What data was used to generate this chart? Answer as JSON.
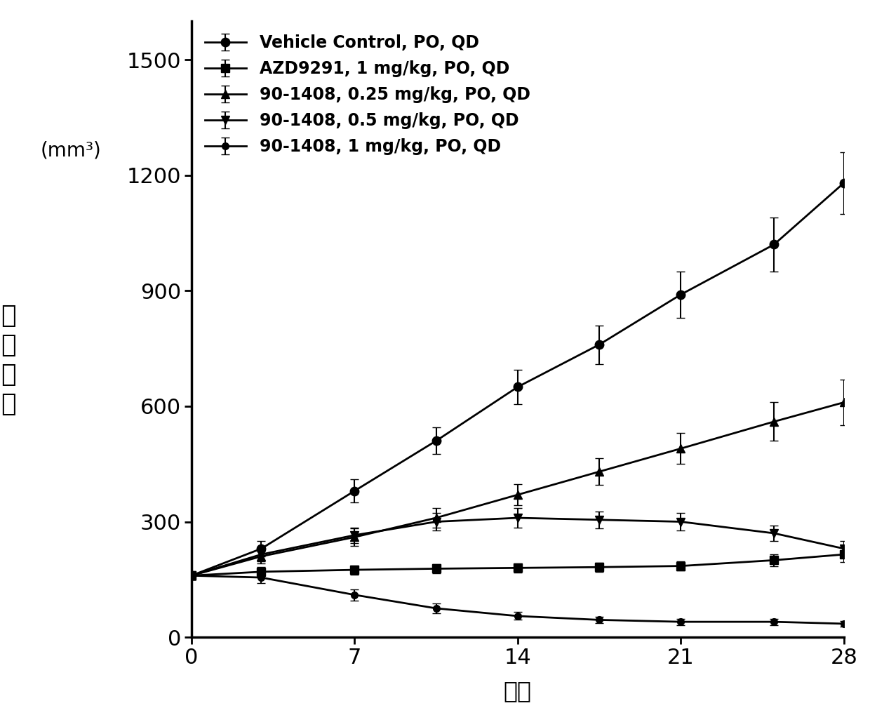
{
  "x_ticks": [
    0,
    7,
    14,
    21,
    28
  ],
  "xlabel": "天数",
  "ylabel_chinese": "肿\n瘤\n体\n积",
  "ylabel_units": "(mm³)",
  "ylim": [
    0,
    1600
  ],
  "yticks": [
    0,
    300,
    600,
    900,
    1200,
    1500
  ],
  "xlim": [
    0,
    28
  ],
  "series": [
    {
      "label": "Vehicle Control, PO, QD",
      "x": [
        0,
        3,
        7,
        10.5,
        14,
        17.5,
        21,
        25,
        28
      ],
      "y": [
        160,
        230,
        380,
        510,
        650,
        760,
        890,
        1020,
        1180
      ],
      "yerr": [
        10,
        20,
        30,
        35,
        45,
        50,
        60,
        70,
        80
      ],
      "marker": "o",
      "color": "#000000",
      "linestyle": "-",
      "linewidth": 2.0,
      "markersize": 9
    },
    {
      "label": "AZD9291, 1 mg/kg, PO, QD",
      "x": [
        0,
        3,
        7,
        10.5,
        14,
        17.5,
        21,
        25,
        28
      ],
      "y": [
        160,
        170,
        175,
        178,
        180,
        182,
        185,
        200,
        215
      ],
      "yerr": [
        10,
        12,
        12,
        12,
        12,
        12,
        12,
        15,
        20
      ],
      "marker": "s",
      "color": "#000000",
      "linestyle": "-",
      "linewidth": 2.0,
      "markersize": 9
    },
    {
      "label": "90-1408, 0.25 mg/kg, PO, QD",
      "x": [
        0,
        3,
        7,
        10.5,
        14,
        17.5,
        21,
        25,
        28
      ],
      "y": [
        160,
        210,
        260,
        310,
        370,
        430,
        490,
        560,
        610
      ],
      "yerr": [
        10,
        18,
        22,
        25,
        28,
        35,
        40,
        50,
        60
      ],
      "marker": "^",
      "color": "#000000",
      "linestyle": "-",
      "linewidth": 2.0,
      "markersize": 9
    },
    {
      "label": "90-1408, 0.5 mg/kg, PO, QD",
      "x": [
        0,
        3,
        7,
        10.5,
        14,
        17.5,
        21,
        25,
        28
      ],
      "y": [
        160,
        215,
        265,
        300,
        310,
        305,
        300,
        270,
        230
      ],
      "yerr": [
        10,
        18,
        20,
        22,
        25,
        22,
        22,
        20,
        20
      ],
      "marker": "v",
      "color": "#000000",
      "linestyle": "-",
      "linewidth": 2.0,
      "markersize": 9
    },
    {
      "label": "90-1408, 1 mg/kg, PO, QD",
      "x": [
        0,
        3,
        7,
        10.5,
        14,
        17.5,
        21,
        25,
        28
      ],
      "y": [
        160,
        155,
        110,
        75,
        55,
        45,
        40,
        40,
        35
      ],
      "yerr": [
        10,
        15,
        15,
        12,
        10,
        8,
        8,
        8,
        8
      ],
      "marker": "o",
      "color": "#000000",
      "linestyle": "-",
      "linewidth": 2.0,
      "markersize": 7
    }
  ],
  "legend_fontsize": 17,
  "tick_fontsize": 22,
  "label_fontsize": 24,
  "units_fontsize": 20,
  "chinese_fontsize": 26,
  "background_color": "#ffffff",
  "capsize": 4,
  "elinewidth": 1.5
}
